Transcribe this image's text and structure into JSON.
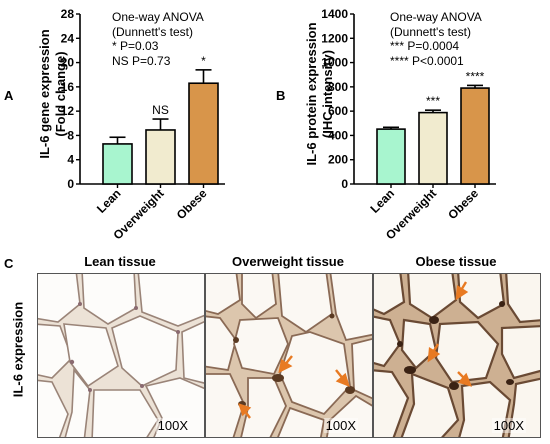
{
  "panels": {
    "A": "A",
    "B": "B",
    "C": "C"
  },
  "chart_data": [
    {
      "type": "bar",
      "categories": [
        "Lean",
        "Overweight",
        "Obese"
      ],
      "values": [
        6.6,
        8.9,
        16.6
      ],
      "errors": [
        1.1,
        1.8,
        2.2
      ],
      "colors": [
        "#a8f5cf",
        "#f1ebcf",
        "#d8954a"
      ],
      "significance": [
        "",
        "NS",
        "*"
      ],
      "ylabel": "IL-6 gene expression",
      "ylabel2": "(Fold change)",
      "ylim": [
        0,
        28
      ],
      "yticks": [
        0,
        4,
        8,
        12,
        16,
        20,
        24,
        28
      ],
      "annotation": [
        "One-way ANOVA",
        "(Dunnett's test)",
        "* P=0.03",
        "NS P=0.73"
      ]
    },
    {
      "type": "bar",
      "categories": [
        "Lean",
        "Overweight",
        "Obese"
      ],
      "values": [
        452,
        588,
        790
      ],
      "errors": [
        15,
        20,
        22
      ],
      "colors": [
        "#a8f5cf",
        "#f1ebcf",
        "#d8954a"
      ],
      "significance": [
        "",
        "***",
        "****"
      ],
      "ylabel": "IL-6 protein expression",
      "ylabel2": "(IHC intensity)",
      "ylim": [
        0,
        1400
      ],
      "yticks": [
        0,
        200,
        400,
        600,
        800,
        1000,
        1200,
        1400
      ],
      "annotation": [
        "One-way ANOVA",
        "(Dunnett's test)",
        "*** P=0.0004",
        "**** P<0.0001"
      ]
    }
  ],
  "histology": {
    "row_label": "IL-6 expression",
    "images": [
      {
        "title": "Lean tissue",
        "magnification": "100X"
      },
      {
        "title": "Overweight tissue",
        "magnification": "100X"
      },
      {
        "title": "Obese tissue",
        "magnification": "100X"
      }
    ],
    "arrow_color": "#e87a22"
  }
}
